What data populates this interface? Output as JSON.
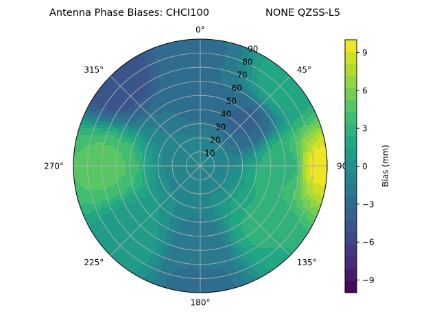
{
  "chart_data": {
    "type": "heatmap",
    "projection": "polar",
    "title": "Antenna Phase Biases: CHCI100",
    "title_right": "NONE QZSS-L5",
    "theta_direction": "clockwise",
    "theta_zero": "top",
    "angular_ticks": [
      "0°",
      "45°",
      "90",
      "135°",
      "180°",
      "225°",
      "270°",
      "315°"
    ],
    "radial_ticks": [
      10,
      20,
      30,
      40,
      50,
      60,
      70,
      80,
      90
    ],
    "radial_range": [
      0,
      90
    ],
    "grid": true,
    "colorbar": {
      "label": "Bias (mm)",
      "range": [
        -10,
        10
      ],
      "ticks": [
        -9,
        -6,
        -3,
        0,
        3,
        6,
        9
      ],
      "tick_labels": [
        "−9",
        "−6",
        "−3",
        "0",
        "3",
        "6",
        "9"
      ],
      "levels": 21,
      "colormap": [
        "#440154",
        "#482475",
        "#414487",
        "#355f8d",
        "#2a788e",
        "#21918c",
        "#22a884",
        "#44bf70",
        "#7ad151",
        "#bddf26",
        "#fde725"
      ]
    },
    "z_samples_mm": [
      {
        "azimuth": 0,
        "zenith": 45,
        "value": -2.5
      },
      {
        "azimuth": 0,
        "zenith": 80,
        "value": -2.5
      },
      {
        "azimuth": 45,
        "zenith": 45,
        "value": -3.5
      },
      {
        "azimuth": 45,
        "zenith": 80,
        "value": 2.0
      },
      {
        "azimuth": 90,
        "zenith": 60,
        "value": 3.0
      },
      {
        "azimuth": 90,
        "zenith": 85,
        "value": 9.5
      },
      {
        "azimuth": 135,
        "zenith": 60,
        "value": 2.5
      },
      {
        "azimuth": 180,
        "zenith": 60,
        "value": -2.0
      },
      {
        "azimuth": 180,
        "zenith": 85,
        "value": -3.0
      },
      {
        "azimuth": 225,
        "zenith": 70,
        "value": 1.0
      },
      {
        "azimuth": 270,
        "zenith": 70,
        "value": 4.5
      },
      {
        "azimuth": 315,
        "zenith": 85,
        "value": -5.0
      },
      {
        "azimuth": 0,
        "zenith": 5,
        "value": -1.0
      }
    ]
  }
}
